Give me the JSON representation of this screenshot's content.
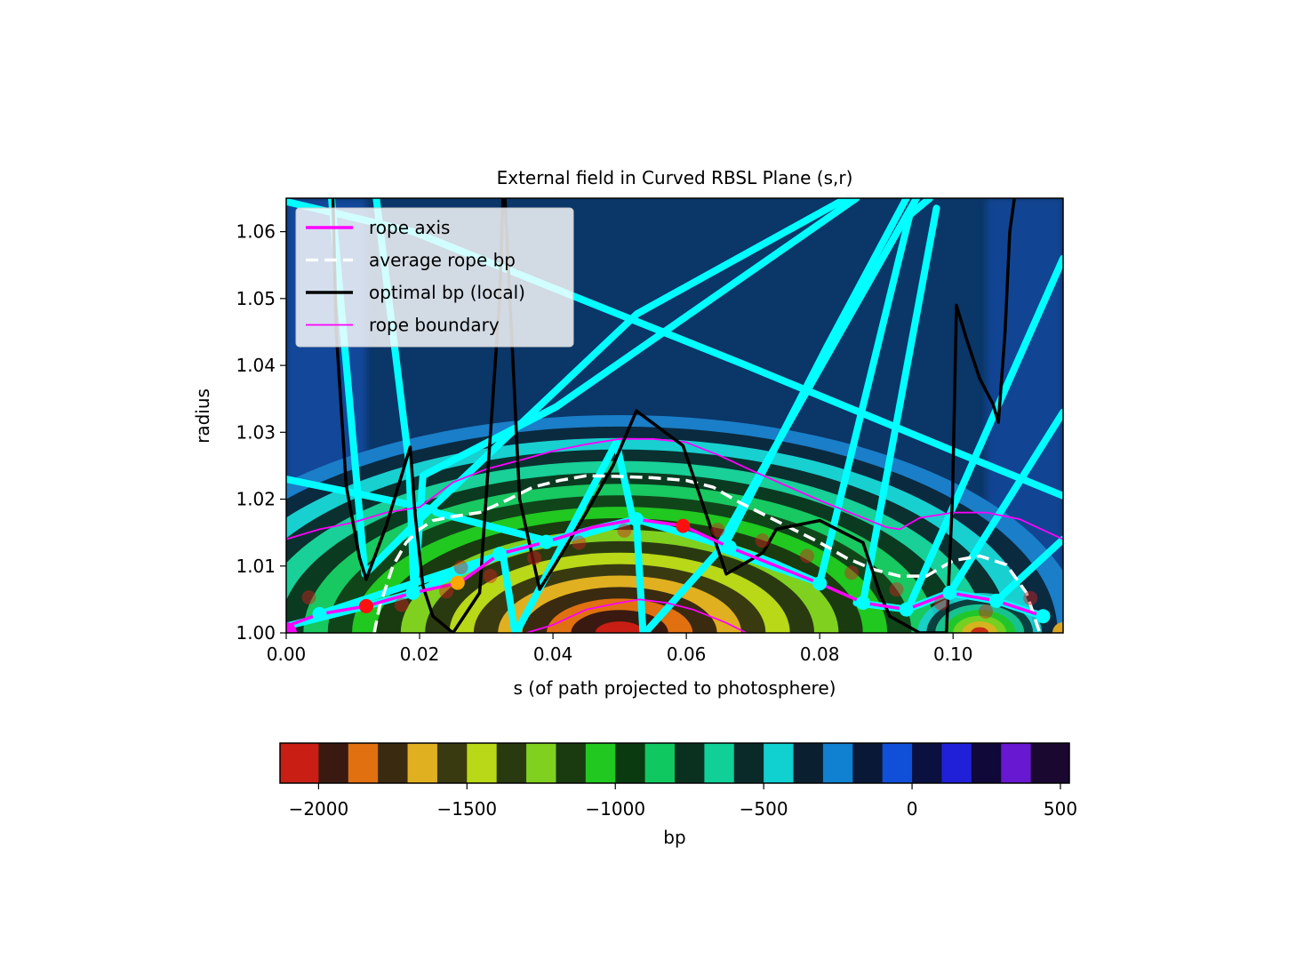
{
  "chart_data": [
    {
      "type": "heatmap",
      "title": "External field in Curved RBSL Plane (s,r)",
      "xlabel": "s (of path projected to photosphere)",
      "ylabel": "radius",
      "xlim": [
        0.0,
        0.1165
      ],
      "ylim": [
        1.0,
        1.065
      ],
      "xticks": [
        "0.00",
        "0.02",
        "0.04",
        "0.06",
        "0.08",
        "0.10"
      ],
      "yticks": [
        "1.00",
        "1.01",
        "1.02",
        "1.03",
        "1.04",
        "1.05",
        "1.06"
      ],
      "legend_position": "upper-left",
      "legend": [
        {
          "label": "rope axis",
          "color": "#ff00ff",
          "style": "solid-thick"
        },
        {
          "label": "average rope bp",
          "color": "#ffffff",
          "style": "dashed"
        },
        {
          "label": "optimal bp (local)",
          "color": "#000000",
          "style": "solid-thick"
        },
        {
          "label": "rope boundary",
          "color": "#ff00ff",
          "style": "solid-thin"
        }
      ],
      "field_description": "bp field: strongly negative dome centred near s=0.05 at the photosphere, banded contours",
      "series": [
        {
          "name": "rope axis",
          "color": "#ff00ff",
          "x": [
            0.0,
            0.005,
            0.012,
            0.019,
            0.026,
            0.032,
            0.039,
            0.046,
            0.0525,
            0.0595,
            0.0665,
            0.073,
            0.08,
            0.0865,
            0.093,
            0.0995,
            0.1065,
            0.1135
          ],
          "y": [
            1.001,
            1.0028,
            1.004,
            1.006,
            1.0075,
            1.0118,
            1.0136,
            1.0158,
            1.017,
            1.016,
            1.0128,
            1.0102,
            1.0074,
            1.0045,
            1.0035,
            1.006,
            1.0048,
            1.0025
          ]
        },
        {
          "name": "average rope bp",
          "color": "#ffffff",
          "x": [
            0.0132,
            0.014,
            0.016,
            0.018,
            0.02,
            0.022,
            0.025,
            0.029,
            0.033,
            0.037,
            0.041,
            0.045,
            0.05,
            0.055,
            0.06,
            0.064,
            0.068,
            0.072,
            0.076,
            0.08,
            0.084,
            0.088,
            0.092,
            0.096,
            0.1,
            0.104,
            0.108,
            0.111,
            0.113
          ],
          "y": [
            1.0,
            1.004,
            1.01,
            1.0135,
            1.0155,
            1.0168,
            1.0174,
            1.018,
            1.0198,
            1.0218,
            1.0228,
            1.0235,
            1.0234,
            1.0232,
            1.0228,
            1.0218,
            1.0195,
            1.0175,
            1.0155,
            1.0135,
            1.0112,
            1.0095,
            1.0085,
            1.0085,
            1.0108,
            1.0115,
            1.0102,
            1.006,
            1.0
          ]
        },
        {
          "name": "optimal bp (local)",
          "color": "#000000",
          "x": [
            0.007,
            0.0075,
            0.009,
            0.011,
            0.012,
            0.015,
            0.0186,
            0.0193,
            0.0205,
            0.022,
            0.025,
            0.029,
            0.032,
            0.0325,
            0.0328,
            0.035,
            0.038,
            0.0405,
            0.045,
            0.049,
            0.0525,
            0.0595,
            0.066,
            0.0715,
            0.0735,
            0.08,
            0.0865,
            0.089,
            0.0905,
            0.095,
            0.099,
            0.0999,
            0.1005,
            0.102,
            0.104,
            0.106,
            0.1068,
            0.1078,
            0.1085,
            0.1092
          ],
          "y": [
            1.065,
            1.045,
            1.022,
            1.0112,
            1.008,
            1.016,
            1.0278,
            1.018,
            1.007,
            1.0025,
            1.0,
            1.006,
            1.05,
            1.065,
            1.065,
            1.02,
            1.0065,
            1.0105,
            1.018,
            1.025,
            1.0332,
            1.028,
            1.0088,
            1.012,
            1.0155,
            1.0168,
            1.0135,
            1.006,
            1.0025,
            1.0,
            1.0,
            1.02,
            1.049,
            1.044,
            1.038,
            1.0342,
            1.0315,
            1.045,
            1.06,
            1.065
          ]
        },
        {
          "name": "rope boundary",
          "color": "#ff00ff",
          "x": [
            0.0,
            0.005,
            0.01,
            0.015,
            0.02,
            0.025,
            0.03,
            0.035,
            0.04,
            0.045,
            0.05,
            0.055,
            0.06,
            0.065,
            0.07,
            0.075,
            0.08,
            0.085,
            0.09,
            0.092,
            0.095,
            0.1,
            0.105,
            0.11,
            0.1165
          ],
          "y": [
            1.014,
            1.0155,
            1.0165,
            1.018,
            1.0188,
            1.0225,
            1.0245,
            1.0258,
            1.0272,
            1.0282,
            1.029,
            1.029,
            1.0285,
            1.0265,
            1.0242,
            1.022,
            1.0198,
            1.0178,
            1.0158,
            1.0155,
            1.0172,
            1.018,
            1.018,
            1.017,
            1.014
          ]
        }
      ],
      "lower_boundary": {
        "x": [
          0.036,
          0.04,
          0.045,
          0.05,
          0.053,
          0.057,
          0.061,
          0.066,
          0.069
        ],
        "y": [
          1.0,
          1.0012,
          1.0035,
          1.0045,
          1.005,
          1.0045,
          1.0035,
          1.0015,
          1.0
        ]
      },
      "red_points": {
        "x": [
          0.0034,
          0.0173,
          0.024,
          0.0262,
          0.0306,
          0.0372,
          0.0439,
          0.0507,
          0.0647,
          0.0714,
          0.0781,
          0.0848,
          0.0915,
          0.0982,
          0.1049,
          0.1116
        ],
        "y": [
          1.0053,
          1.0042,
          1.0062,
          1.0098,
          1.0085,
          1.0112,
          1.0135,
          1.0153,
          1.0154,
          1.0138,
          1.0115,
          1.009,
          1.0065,
          1.0044,
          1.0032,
          1.0052
        ]
      },
      "bright_red_points": {
        "x": [
          0.012,
          0.0595
        ],
        "y": [
          1.004,
          1.016
        ]
      },
      "orange_point": {
        "x": 0.0257,
        "y": 1.0075
      },
      "start_marker": {
        "x": 0.0,
        "y": 1.0,
        "color": "#ff00ff"
      },
      "end_marker": {
        "x": 0.1165,
        "y": 1.0,
        "color": "#daa520"
      },
      "cyan_points": {
        "x": [
          0.005,
          0.019,
          0.032,
          0.039,
          0.0525,
          0.0665,
          0.08,
          0.0865,
          0.093,
          0.0995,
          0.1065,
          0.1135
        ],
        "y": [
          1.0028,
          1.006,
          1.0118,
          1.0136,
          1.017,
          1.0128,
          1.0074,
          1.0045,
          1.0035,
          1.006,
          1.0048,
          1.0025
        ]
      },
      "cyan_segments": [
        [
          [
            0.0,
            1.0645
          ],
          [
            0.019,
            1.06
          ],
          [
            0.069,
            1.04
          ],
          [
            0.103,
            1.026
          ],
          [
            0.1165,
            1.0205
          ]
        ],
        [
          [
            0.0,
            1.023
          ],
          [
            0.022,
            1.0185
          ],
          [
            0.0225,
            1.018
          ],
          [
            0.0402,
            1.0135
          ],
          [
            0.0525,
            1.017
          ],
          [
            0.0665,
            1.0128
          ],
          [
            0.073,
            1.0105
          ],
          [
            0.08,
            1.0074
          ]
        ],
        [
          [
            0.0068,
            1.065
          ],
          [
            0.0118,
            1.0088
          ],
          [
            0.0195,
            1.0165
          ],
          [
            0.0526,
            1.0477
          ],
          [
            0.084,
            1.065
          ]
        ],
        [
          [
            0.0135,
            1.065
          ],
          [
            0.0184,
            1.0255
          ],
          [
            0.0192,
            1.0055
          ],
          [
            0.0205,
            1.0235
          ],
          [
            0.0405,
            1.0338
          ],
          [
            0.0855,
            1.065
          ]
        ],
        [
          [
            0.005,
            1.0028
          ],
          [
            0.0325,
            1.0118
          ],
          [
            0.0343,
            1.0
          ],
          [
            0.0345,
            1.0
          ],
          [
            0.0495,
            1.0285
          ],
          [
            0.052,
            1.017
          ]
        ],
        [
          [
            0.0525,
            1.017
          ],
          [
            0.0535,
            1.0
          ],
          [
            0.0538,
            1.0
          ],
          [
            0.066,
            1.0135
          ],
          [
            0.0812,
            1.043
          ],
          [
            0.093,
            1.065
          ]
        ],
        [
          [
            0.0665,
            1.0128
          ],
          [
            0.0652,
            1.0135
          ],
          [
            0.0945,
            1.065
          ]
        ],
        [
          [
            0.0655,
            1.0125
          ],
          [
            0.08,
            1.0075
          ],
          [
            0.0935,
            1.0625
          ],
          [
            0.0965,
            1.065
          ]
        ],
        [
          [
            0.0865,
            1.0045
          ],
          [
            0.0975,
            1.0635
          ]
        ],
        [
          [
            0.0855,
            1.0045
          ],
          [
            0.0932,
            1.0035
          ],
          [
            0.1165,
            1.056
          ]
        ],
        [
          [
            0.093,
            1.0035
          ],
          [
            0.0995,
            1.006
          ],
          [
            0.1165,
            1.033
          ]
        ],
        [
          [
            0.1065,
            1.0048
          ],
          [
            0.1165,
            1.014
          ]
        ],
        [
          [
            0.0995,
            1.006
          ],
          [
            0.1065,
            1.0048
          ],
          [
            0.1135,
            1.0025
          ]
        ],
        [
          [
            0.0,
            1.001
          ],
          [
            0.012,
            1.004
          ],
          [
            0.0192,
            1.006
          ],
          [
            0.0325,
            1.0118
          ],
          [
            0.0385,
            1.0135
          ]
        ],
        [
          [
            0.0385,
            1.0135
          ],
          [
            0.046,
            1.0155
          ],
          [
            0.0525,
            1.017
          ]
        ]
      ]
    },
    {
      "type": "colorbar",
      "xlabel": "bp",
      "xlim": [
        -2130,
        530
      ],
      "ticks": [
        -2000,
        -1500,
        -1000,
        -500,
        0,
        500
      ],
      "tick_labels": [
        "−2000",
        "−1500",
        "−1000",
        "−500",
        "0",
        "500"
      ],
      "colormap": [
        [
          -2130,
          "#c81e14"
        ],
        [
          -2060,
          "#c81e14"
        ],
        [
          -2000,
          "#3a1a10"
        ],
        [
          -1900,
          "#e07010"
        ],
        [
          -1800,
          "#3a2a10"
        ],
        [
          -1700,
          "#e0b020"
        ],
        [
          -1600,
          "#3a3a10"
        ],
        [
          -1500,
          "#b8d818"
        ],
        [
          -1400,
          "#2a3a10"
        ],
        [
          -1300,
          "#80d020"
        ],
        [
          -1200,
          "#1a3a10"
        ],
        [
          -1100,
          "#20c820"
        ],
        [
          -1000,
          "#0a3a10"
        ],
        [
          -900,
          "#10c860"
        ],
        [
          -800,
          "#0a3020"
        ],
        [
          -700,
          "#10d098"
        ],
        [
          -600,
          "#0a2a2a"
        ],
        [
          -500,
          "#10d0d0"
        ],
        [
          -400,
          "#0a2030"
        ],
        [
          -300,
          "#1080d0"
        ],
        [
          -200,
          "#0a1838"
        ],
        [
          -100,
          "#1050d8"
        ],
        [
          0,
          "#0a1040"
        ],
        [
          100,
          "#2020d8"
        ],
        [
          200,
          "#100838"
        ],
        [
          300,
          "#6818d0"
        ],
        [
          400,
          "#1a0830"
        ],
        [
          530,
          "#1a0a28"
        ]
      ]
    }
  ]
}
